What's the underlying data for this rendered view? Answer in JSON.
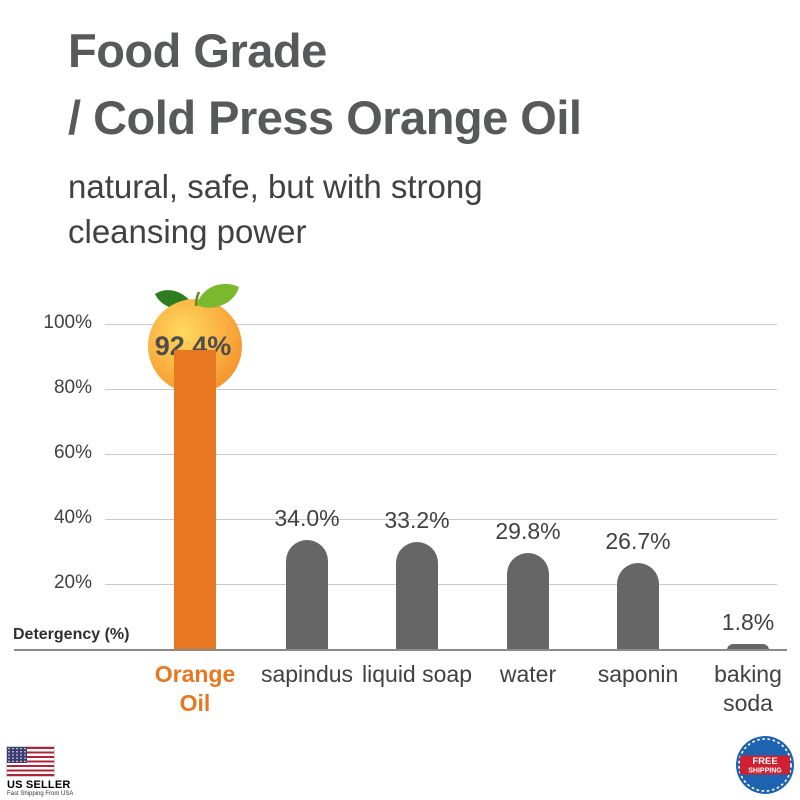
{
  "header": {
    "title_line1": "Food Grade",
    "title_line2": "/ Cold Press Orange Oil",
    "subtitle_line1": "natural, safe, but with strong",
    "subtitle_line2": "cleansing power"
  },
  "chart_data": {
    "type": "bar",
    "categories": [
      "Orange Oil",
      "sapindus",
      "liquid soap",
      "water",
      "saponin",
      "baking soda"
    ],
    "values": [
      92.4,
      34.0,
      33.2,
      29.8,
      26.7,
      1.8
    ],
    "value_labels": [
      "92.4%",
      "34.0%",
      "33.2%",
      "29.8%",
      "26.7%",
      "1.8%"
    ],
    "ylabel": "Detergency (%)",
    "ylim": [
      0,
      100
    ],
    "yticks": [
      100,
      80,
      60,
      40,
      20
    ],
    "ytick_labels": [
      "100%",
      "80%",
      "60%",
      "40%",
      "20%"
    ],
    "grid": true,
    "legend": "none",
    "highlight_index": 0,
    "colors": {
      "highlight_bar": "#E87722",
      "bar": "#666666",
      "gridline": "#c9c9c9",
      "title_text": "#58595b",
      "label_text": "#414042"
    }
  },
  "footer": {
    "us_seller": {
      "title": "US SELLER",
      "subtitle": "Fast Shipping From USA"
    },
    "free_shipping": {
      "line1": "FREE",
      "line2": "SHIPPING"
    }
  }
}
